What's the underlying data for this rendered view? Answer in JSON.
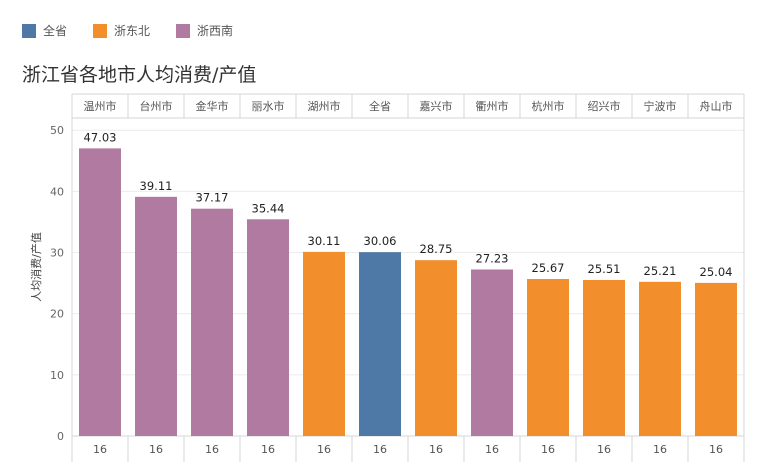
{
  "legend": [
    {
      "label": "全省",
      "color": "#4e79a7"
    },
    {
      "label": "浙东北",
      "color": "#f28e2b"
    },
    {
      "label": "浙西南",
      "color": "#b07aa1"
    }
  ],
  "chart_data": {
    "type": "bar",
    "title": "浙江省各地市人均消费/产值",
    "ylabel": "人均消费/产值",
    "ylim": [
      0,
      52
    ],
    "yticks": [
      0,
      10,
      20,
      30,
      40,
      50
    ],
    "grid": true,
    "legend_position": "top-left",
    "categories": [
      "温州市",
      "台州市",
      "金华市",
      "丽水市",
      "湖州市",
      "全省",
      "嘉兴市",
      "衢州市",
      "杭州市",
      "绍兴市",
      "宁波市",
      "舟山市"
    ],
    "values": [
      47.03,
      39.11,
      37.17,
      35.44,
      30.11,
      30.06,
      28.75,
      27.23,
      25.67,
      25.51,
      25.21,
      25.04
    ],
    "value_labels": [
      "47.03",
      "39.11",
      "37.17",
      "35.44",
      "30.11",
      "30.06",
      "28.75",
      "27.23",
      "25.67",
      "25.51",
      "25.21",
      "25.04"
    ],
    "groups": [
      "浙西南",
      "浙西南",
      "浙西南",
      "浙西南",
      "浙东北",
      "全省",
      "浙东北",
      "浙西南",
      "浙东北",
      "浙东北",
      "浙东北",
      "浙东北"
    ],
    "bottom_labels": [
      "16",
      "16",
      "16",
      "16",
      "16",
      "16",
      "16",
      "16",
      "16",
      "16",
      "16",
      "16"
    ]
  }
}
